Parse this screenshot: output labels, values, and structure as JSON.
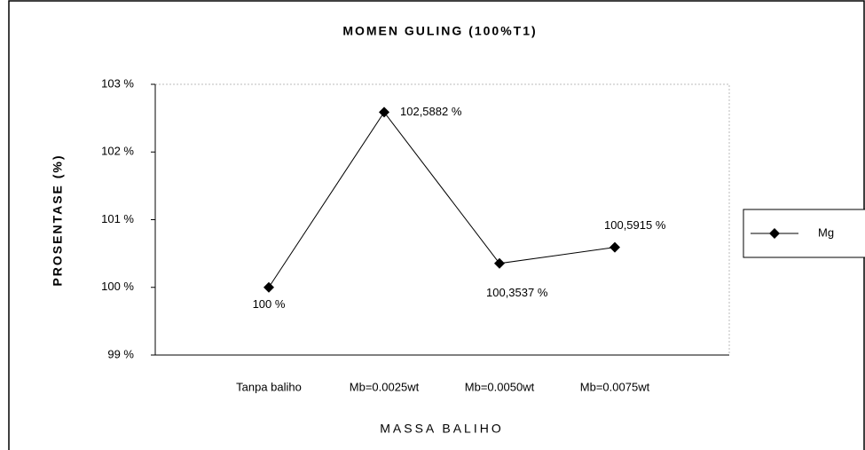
{
  "chart_data": {
    "type": "line",
    "title": "MOMEN GULING (100%T1)",
    "x_label": "MASSA BALIHO",
    "y_label": "PROSENTASE (%)",
    "categories": [
      "Tanpa baliho",
      "Mb=0.0025wt",
      "Mb=0.0050wt",
      "Mb=0.0075wt"
    ],
    "series": [
      {
        "name": "Mg",
        "color": "#000000",
        "values": [
          100,
          102.5882,
          100.3537,
          100.5915
        ],
        "value_labels": [
          "100 %",
          "102,5882 %",
          "100,3537 %",
          "100,5915 %"
        ]
      }
    ],
    "ylim": [
      99,
      103
    ],
    "yticks": [
      {
        "value": 99,
        "label": "99 %"
      },
      {
        "value": 100,
        "label": "100 %"
      },
      {
        "value": 101,
        "label": "101 %"
      },
      {
        "value": 102,
        "label": "102 %"
      },
      {
        "value": 103,
        "label": "103 %"
      }
    ],
    "legend": "right"
  }
}
